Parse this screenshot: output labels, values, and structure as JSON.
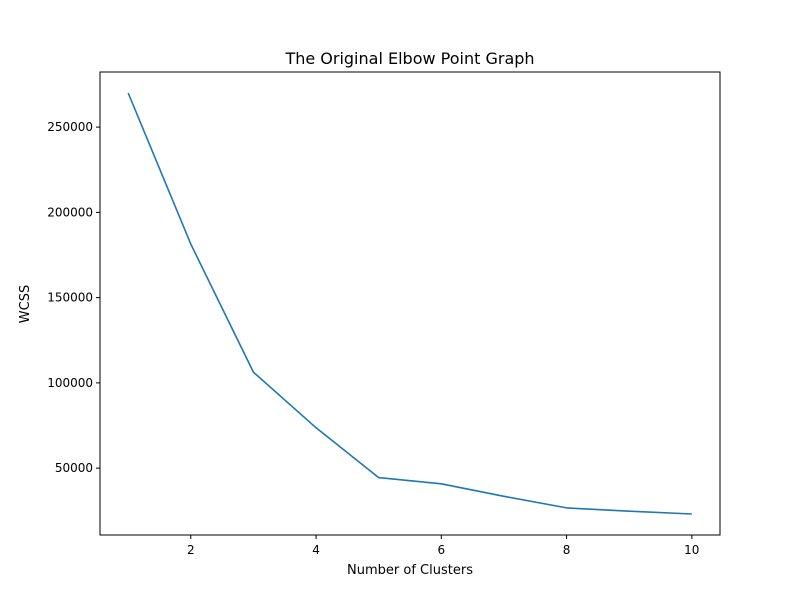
{
  "chart_data": {
    "type": "line",
    "title": "The Original Elbow Point Graph",
    "xlabel": "Number of Clusters",
    "ylabel": "WCSS",
    "x": [
      1,
      2,
      3,
      4,
      5,
      6,
      7,
      8,
      9,
      10
    ],
    "series": [
      {
        "values": [
          269981,
          181363,
          106348,
          73679,
          44448,
          40826,
          33500,
          26687,
          24767,
          23129
        ],
        "color": "#1f77b4"
      }
    ],
    "xlim": [
      0.55,
      10.45
    ],
    "ylim": [
      10792,
      282318
    ],
    "xticks": [
      2,
      4,
      6,
      8,
      10
    ],
    "xtick_labels": [
      "2",
      "4",
      "6",
      "8",
      "10"
    ],
    "yticks": [
      50000,
      100000,
      150000,
      200000,
      250000
    ],
    "ytick_labels": [
      "50000",
      "100000",
      "150000",
      "200000",
      "250000"
    ],
    "grid": false,
    "legend": false
  }
}
